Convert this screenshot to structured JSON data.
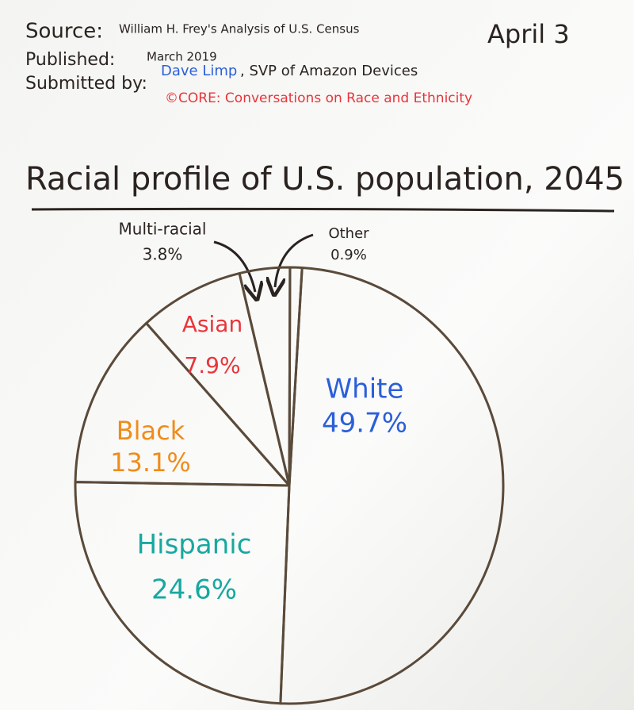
{
  "header": {
    "source_label": "Source:",
    "source": "William H. Frey's Analysis of U.S. Census",
    "published_label": "Published:",
    "published": "March 2019",
    "submitted_label": "Submitted by:",
    "submitter": "Dave Limp",
    "submitter_role": ", SVP of Amazon Devices",
    "program": "©CORE: Conversations on Race and Ethnicity",
    "date": "April 3"
  },
  "chart_data": {
    "type": "pie",
    "title": "Racial profile of U.S. population, 2045",
    "categories": [
      "White",
      "Hispanic",
      "Black",
      "Asian",
      "Multi-racial",
      "Other"
    ],
    "values": [
      49.7,
      24.6,
      13.1,
      7.9,
      3.8,
      0.9
    ],
    "value_labels": [
      "49.7%",
      "24.6%",
      "13.1%",
      "7.9%",
      "3.8%",
      "0.9%"
    ],
    "colors": [
      "#2b5fd9",
      "#17a8a0",
      "#f08c1a",
      "#e8353a",
      "#2a2320",
      "#2a2320"
    ]
  }
}
